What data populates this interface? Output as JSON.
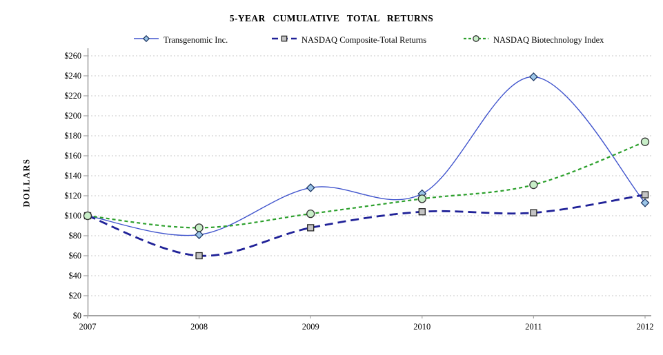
{
  "title": "5-YEAR CUMULATIVE TOTAL RETURNS",
  "y_axis_title": "DOLLARS",
  "chart_data": {
    "type": "line",
    "title": "5-YEAR CUMULATIVE TOTAL RETURNS",
    "xlabel": "",
    "ylabel": "DOLLARS",
    "categories": [
      "2007",
      "2008",
      "2009",
      "2010",
      "2011",
      "2012"
    ],
    "series": [
      {
        "name": "Transgenomic Inc.",
        "values": [
          100,
          81,
          128,
          122,
          239,
          113
        ],
        "color": "#4155CD",
        "line_style": "solid",
        "line_width": 1.4,
        "marker": "diamond",
        "marker_fill": "#9CC6E8",
        "marker_stroke": "#1F3864"
      },
      {
        "name": "NASDAQ Composite-Total Returns",
        "values": [
          100,
          60,
          88,
          104,
          103,
          121
        ],
        "color": "#202298",
        "line_style": "long-dash",
        "line_width": 2.8,
        "marker": "square",
        "marker_fill": "#C4C4C4",
        "marker_stroke": "#262626"
      },
      {
        "name": "NASDAQ Biotechnology Index",
        "values": [
          100,
          88,
          102,
          117,
          131,
          174
        ],
        "color": "#2CA02C",
        "line_style": "short-dash",
        "line_width": 2.2,
        "marker": "circle",
        "marker_fill": "#C8EEC8",
        "marker_stroke": "#333333"
      }
    ],
    "ylim": [
      0,
      260
    ],
    "y_tick_step": 20,
    "y_tick_labels": [
      "$0",
      "$20",
      "$40",
      "$60",
      "$80",
      "$100",
      "$120",
      "$140",
      "$160",
      "$180",
      "$200",
      "$220",
      "$240",
      "$260"
    ],
    "grid": "horizontal-dashed",
    "legend_position": "top",
    "curve": "smooth"
  },
  "colors": {
    "grid": "#C9C9C9",
    "axis": "#A3A3A3",
    "text": "#000000",
    "background": "#FFFFFF"
  }
}
